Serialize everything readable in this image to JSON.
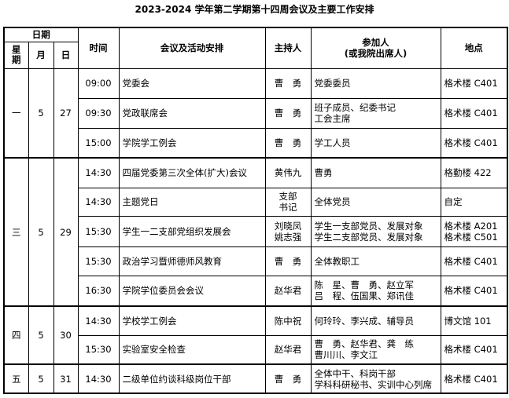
{
  "title": "2023-2024 学年第二学期第十四周会议及主要工作安排",
  "headers": {
    "date": "日期",
    "weekday": "星\n期",
    "month": "月",
    "day": "日",
    "time": "时间",
    "event": "会议及活动安排",
    "host": "主持人",
    "attendees": "参加人\n(或我院出席人)",
    "location": "地点"
  },
  "days": [
    {
      "weekday": "一",
      "month": "5",
      "day": "27",
      "rows": [
        {
          "time": "09:00",
          "event": "党委会",
          "host": "曹　勇",
          "attendees": "党委委员",
          "location": "格术楼 C401"
        },
        {
          "time": "09:30",
          "event": "党政联席会",
          "host": "曹　勇",
          "attendees": "班子成员、纪委书记\n工会主席",
          "location": "格术楼 C401"
        },
        {
          "time": "15:00",
          "event": "学院学工例会",
          "host": "曹　勇",
          "attendees": "学工人员",
          "location": "格术楼 C401"
        }
      ]
    },
    {
      "weekday": "三",
      "month": "5",
      "day": "29",
      "rows": [
        {
          "time": "14:30",
          "event": "四届党委第三次全体(扩大)会议",
          "host": "黄伟九",
          "attendees": "曹勇",
          "location": "格勤楼 422"
        },
        {
          "time": "14:30",
          "event": "主题党日",
          "host": "支部\n书记",
          "attendees": "全体党员",
          "location": "自定"
        },
        {
          "time": "15:30",
          "event": "学生一二支部党组织发展会",
          "host": "刘晓凤\n姚志强",
          "attendees": "学生一支部党员、发展对象\n学生二支部党员、发展对象",
          "location": "格术楼 A201\n格术楼 C501"
        },
        {
          "time": "15:30",
          "event": "政治学习暨师德师风教育",
          "host": "曹　勇",
          "attendees": "全体教职工",
          "location": "格术楼 C401"
        },
        {
          "time": "16:30",
          "event": "学院学位委员会会议",
          "host": "赵华君",
          "attendees": "陈　星、曹　勇、赵立军\n吕　程、伍国果、郑讯佳",
          "location": "格术楼 C401"
        }
      ]
    },
    {
      "weekday": "四",
      "month": "5",
      "day": "30",
      "rows": [
        {
          "time": "14:30",
          "event": "学校学工例会",
          "host": "陈中祝",
          "attendees": "何玲玲、李兴成、辅导员",
          "location": "博文馆 101"
        },
        {
          "time": "15:30",
          "event": "实验室安全检查",
          "host": "赵华君",
          "attendees": "曹　勇、赵华君、龚　练\n曹川川、李文江",
          "location": "格术楼 C401"
        }
      ]
    },
    {
      "weekday": "五",
      "month": "5",
      "day": "31",
      "rows": [
        {
          "time": "14:30",
          "event": "二级单位约谈科级岗位干部",
          "host": "曹　勇",
          "attendees": "全体中干、科岗干部\n学科科研秘书、实训中心列席",
          "location": "格术楼 C401"
        }
      ]
    }
  ]
}
